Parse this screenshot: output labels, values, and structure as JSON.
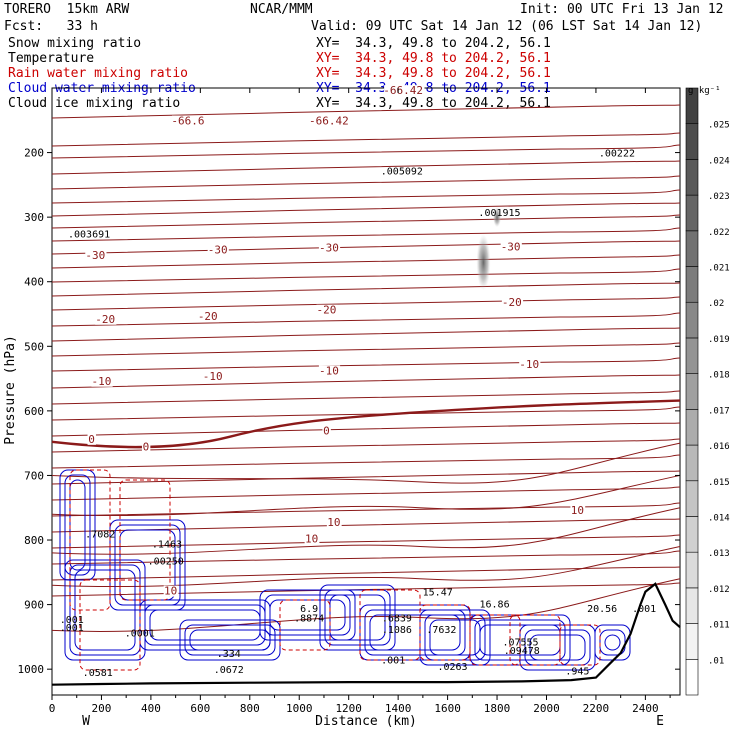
{
  "header": {
    "model": "TORERO  15km ARW",
    "center": "NCAR/MMM",
    "init": "Init: 00 UTC Fri 13 Jan 12",
    "fcst": "Fcst:   33 h",
    "valid": "Valid: 09 UTC Sat 14 Jan 12 (06 LST Sat 14 Jan 12)"
  },
  "fields": [
    {
      "name": "Snow mixing ratio",
      "xy": "XY=  34.3, 49.8 to 204.2, 56.1",
      "color": "#000000",
      "xy_color": "#000000"
    },
    {
      "name": "Temperature",
      "xy": "XY=  34.3, 49.8 to 204.2, 56.1",
      "color": "#000000",
      "xy_color": "#cc0000"
    },
    {
      "name": "Rain water mixing ratio",
      "xy": "XY=  34.3, 49.8 to 204.2, 56.1",
      "color": "#cc0000",
      "xy_color": "#cc0000"
    },
    {
      "name": "Cloud water mixing ratio",
      "xy": "XY=  34.3, 49.8 to 204.2, 56.1",
      "color": "#0000cc",
      "xy_color": "#0000cc"
    },
    {
      "name": "Cloud ice mixing ratio",
      "xy": "XY=  34.3, 49.8 to 204.2, 56.1",
      "color": "#000000",
      "xy_color": "#000000"
    }
  ],
  "colors": {
    "temperature": "#8b1a1a",
    "rain": "#cc0000",
    "cloud_water": "#0000cc",
    "cloud_ice": "#000000",
    "terrain": "#000000"
  },
  "chart_data": {
    "type": "heatmap",
    "xlabel": "Distance (km)",
    "ylabel": "Pressure (hPa)",
    "xlim": [
      0,
      2540
    ],
    "ylim": [
      1040,
      100
    ],
    "x_ticks": [
      0,
      200,
      400,
      600,
      800,
      1000,
      1200,
      1400,
      1600,
      1800,
      2000,
      2200,
      2400
    ],
    "y_ticks": [
      200,
      300,
      400,
      500,
      600,
      700,
      800,
      900,
      1000
    ],
    "x_end_labels": {
      "left": "W",
      "right": "E"
    },
    "colorbar": {
      "unit": "g kg⁻¹",
      "levels": [
        ".01",
        ".011",
        ".012",
        ".013",
        ".014",
        ".015",
        ".016",
        ".017",
        ".018",
        ".019",
        ".02",
        ".021",
        ".022",
        ".023",
        ".024",
        ".025"
      ]
    },
    "temperature_isotherms": [
      {
        "label": "-66.6",
        "x": 550,
        "y": 155
      },
      {
        "label": "-66.42",
        "x": 1120,
        "y": 155
      },
      {
        "label": "-66.42",
        "x": 1420,
        "y": 108
      },
      {
        "label": "-30",
        "x": 175,
        "y": 363
      },
      {
        "label": "-30",
        "x": 670,
        "y": 355
      },
      {
        "label": "-30",
        "x": 1120,
        "y": 352
      },
      {
        "label": "-30",
        "x": 1855,
        "y": 350
      },
      {
        "label": "-20",
        "x": 215,
        "y": 462
      },
      {
        "label": "-20",
        "x": 630,
        "y": 458
      },
      {
        "label": "-20",
        "x": 1110,
        "y": 448
      },
      {
        "label": "-20",
        "x": 1860,
        "y": 436
      },
      {
        "label": "-10",
        "x": 200,
        "y": 558
      },
      {
        "label": "-10",
        "x": 650,
        "y": 551
      },
      {
        "label": "-10",
        "x": 1120,
        "y": 542
      },
      {
        "label": "-10",
        "x": 1930,
        "y": 532
      },
      {
        "label": "0",
        "x": 160,
        "y": 648
      },
      {
        "label": "0",
        "x": 380,
        "y": 660
      },
      {
        "label": "0",
        "x": 1110,
        "y": 635
      },
      {
        "label": "10",
        "x": 1140,
        "y": 777
      },
      {
        "label": "10",
        "x": 1050,
        "y": 802
      },
      {
        "label": "10",
        "x": 2125,
        "y": 758
      },
      {
        "label": "10",
        "x": 480,
        "y": 883
      }
    ],
    "maxima": [
      {
        "label": ".005092",
        "x": 1415,
        "y": 228
      },
      {
        "label": ".00222",
        "x": 2285,
        "y": 200
      },
      {
        "label": ".003691",
        "x": 150,
        "y": 325
      },
      {
        "label": ".001915",
        "x": 1810,
        "y": 292
      },
      {
        "label": ".7082",
        "x": 195,
        "y": 790
      },
      {
        "label": ".1463",
        "x": 465,
        "y": 805
      },
      {
        "label": ".00250",
        "x": 460,
        "y": 832
      },
      {
        "label": "6.9",
        "x": 1040,
        "y": 905
      },
      {
        "label": ".8874",
        "x": 1040,
        "y": 920
      },
      {
        "label": ".6839",
        "x": 1395,
        "y": 920
      },
      {
        "label": ".1086",
        "x": 1395,
        "y": 938
      },
      {
        "label": ".7632",
        "x": 1575,
        "y": 938
      },
      {
        "label": "15.47",
        "x": 1560,
        "y": 880
      },
      {
        "label": "16.86",
        "x": 1790,
        "y": 898
      },
      {
        "label": ".07555",
        "x": 1895,
        "y": 957
      },
      {
        "label": ".09478",
        "x": 1900,
        "y": 970
      },
      {
        "label": "20.56",
        "x": 2225,
        "y": 905
      },
      {
        "label": ".001",
        "x": 2395,
        "y": 905
      },
      {
        "label": ".945",
        "x": 2125,
        "y": 1002
      },
      {
        "label": ".0263",
        "x": 1620,
        "y": 995
      },
      {
        "label": ".001",
        "x": 1380,
        "y": 985
      },
      {
        "label": ".001",
        "x": 80,
        "y": 922
      },
      {
        "label": ".001",
        "x": 80,
        "y": 935
      },
      {
        "label": ".0001",
        "x": 355,
        "y": 943
      },
      {
        "label": ".334",
        "x": 715,
        "y": 975
      },
      {
        "label": ".0672",
        "x": 715,
        "y": 1000
      },
      {
        "label": ".0581",
        "x": 185,
        "y": 1004
      }
    ],
    "terrain_profile": [
      [
        0,
        1024
      ],
      [
        200,
        1023
      ],
      [
        400,
        1022
      ],
      [
        800,
        1021
      ],
      [
        1200,
        1020
      ],
      [
        1600,
        1020
      ],
      [
        1900,
        1019
      ],
      [
        2100,
        1017
      ],
      [
        2200,
        1013
      ],
      [
        2260,
        990
      ],
      [
        2300,
        975
      ],
      [
        2340,
        945
      ],
      [
        2380,
        900
      ],
      [
        2400,
        880
      ],
      [
        2440,
        868
      ],
      [
        2480,
        900
      ],
      [
        2510,
        925
      ],
      [
        2540,
        935
      ]
    ]
  }
}
